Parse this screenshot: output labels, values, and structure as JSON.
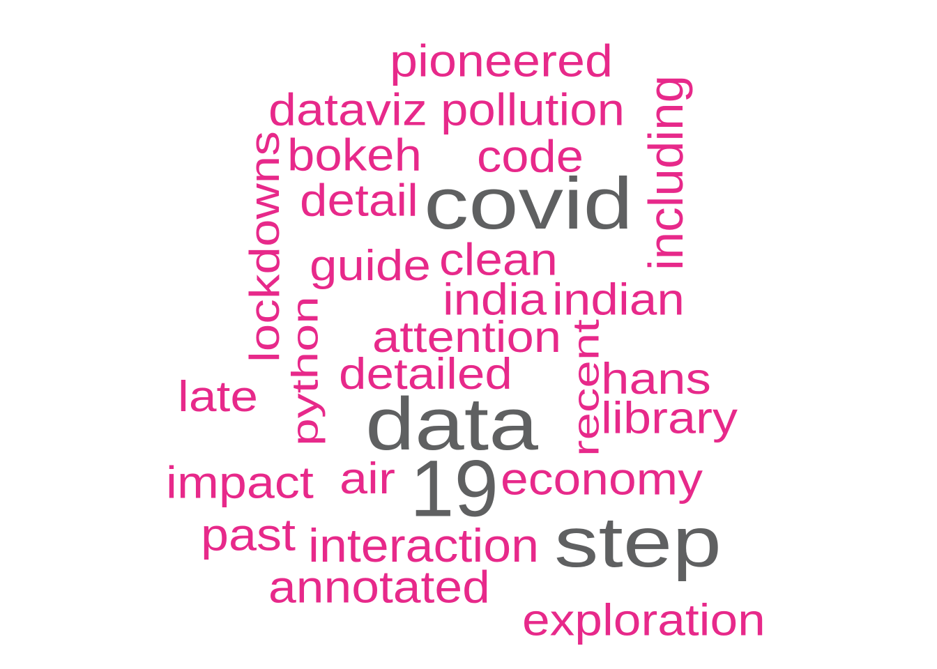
{
  "colors": {
    "background": "#ffffff",
    "primary_term": "#5f6061",
    "secondary_term": "#e7298a"
  },
  "words": [
    {
      "id": "pioneered",
      "text": "pioneered",
      "tier": "secondary",
      "vertical": false
    },
    {
      "id": "dataviz",
      "text": "dataviz",
      "tier": "secondary",
      "vertical": false
    },
    {
      "id": "pollution",
      "text": "pollution",
      "tier": "secondary",
      "vertical": false
    },
    {
      "id": "including",
      "text": "including",
      "tier": "secondary",
      "vertical": true
    },
    {
      "id": "bokeh",
      "text": "bokeh",
      "tier": "secondary",
      "vertical": false
    },
    {
      "id": "code",
      "text": "code",
      "tier": "secondary",
      "vertical": false
    },
    {
      "id": "lockdowns",
      "text": "lockdowns",
      "tier": "secondary",
      "vertical": true
    },
    {
      "id": "detail",
      "text": "detail",
      "tier": "secondary",
      "vertical": false
    },
    {
      "id": "covid",
      "text": "covid",
      "tier": "primary",
      "vertical": false
    },
    {
      "id": "guide",
      "text": "guide",
      "tier": "secondary",
      "vertical": false
    },
    {
      "id": "clean",
      "text": "clean",
      "tier": "secondary",
      "vertical": false
    },
    {
      "id": "india",
      "text": "india",
      "tier": "secondary",
      "vertical": false
    },
    {
      "id": "indian",
      "text": "indian",
      "tier": "secondary",
      "vertical": false
    },
    {
      "id": "python",
      "text": "python",
      "tier": "secondary",
      "vertical": true
    },
    {
      "id": "attention",
      "text": "attention",
      "tier": "secondary",
      "vertical": false
    },
    {
      "id": "recent",
      "text": "recent",
      "tier": "secondary",
      "vertical": true
    },
    {
      "id": "detailed",
      "text": "detailed",
      "tier": "secondary",
      "vertical": false
    },
    {
      "id": "hans",
      "text": "hans",
      "tier": "secondary",
      "vertical": false
    },
    {
      "id": "late",
      "text": "late",
      "tier": "secondary",
      "vertical": false
    },
    {
      "id": "data",
      "text": "data",
      "tier": "primary",
      "vertical": false
    },
    {
      "id": "library",
      "text": "library",
      "tier": "secondary",
      "vertical": false
    },
    {
      "id": "impact",
      "text": "impact",
      "tier": "secondary",
      "vertical": false
    },
    {
      "id": "air",
      "text": "air",
      "tier": "secondary",
      "vertical": false
    },
    {
      "id": "19",
      "text": "19",
      "tier": "primary",
      "vertical": false
    },
    {
      "id": "economy",
      "text": "economy",
      "tier": "secondary",
      "vertical": false
    },
    {
      "id": "past",
      "text": "past",
      "tier": "secondary",
      "vertical": false
    },
    {
      "id": "step",
      "text": "step",
      "tier": "primary",
      "vertical": false
    },
    {
      "id": "interaction",
      "text": "interaction",
      "tier": "secondary",
      "vertical": false
    },
    {
      "id": "annotated",
      "text": "annotated",
      "tier": "secondary",
      "vertical": false
    },
    {
      "id": "exploration",
      "text": "exploration",
      "tier": "secondary",
      "vertical": false
    }
  ]
}
